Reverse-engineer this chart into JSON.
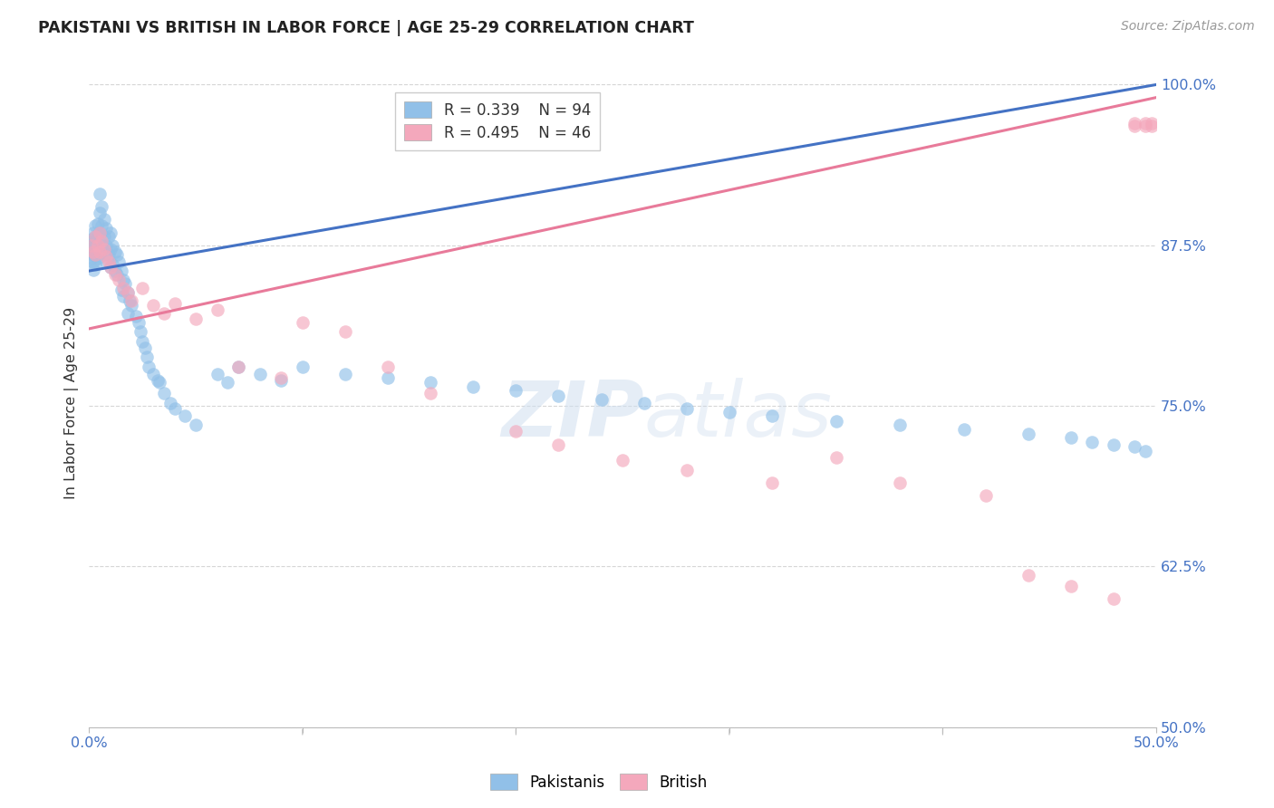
{
  "title": "PAKISTANI VS BRITISH IN LABOR FORCE | AGE 25-29 CORRELATION CHART",
  "source": "Source: ZipAtlas.com",
  "ylabel_label": "In Labor Force | Age 25-29",
  "x_min": 0.0,
  "x_max": 0.5,
  "y_min": 0.5,
  "y_max": 1.005,
  "x_ticks": [
    0.0,
    0.1,
    0.2,
    0.3,
    0.4,
    0.5
  ],
  "x_tick_labels": [
    "0.0%",
    "",
    "",
    "",
    "",
    "50.0%"
  ],
  "y_tick_labels": [
    "100.0%",
    "87.5%",
    "75.0%",
    "62.5%",
    "50.0%"
  ],
  "y_ticks": [
    1.0,
    0.875,
    0.75,
    0.625,
    0.5
  ],
  "pakistani_R": 0.339,
  "pakistani_N": 94,
  "british_R": 0.495,
  "british_N": 46,
  "pakistani_color": "#91c0e8",
  "british_color": "#f4a8bc",
  "pakistani_line_color": "#4472c4",
  "british_line_color": "#e87a9a",
  "background_color": "#ffffff",
  "grid_color": "#cccccc",
  "pakistani_x": [
    0.001,
    0.001,
    0.001,
    0.001,
    0.002,
    0.002,
    0.002,
    0.002,
    0.002,
    0.002,
    0.003,
    0.003,
    0.003,
    0.003,
    0.003,
    0.004,
    0.004,
    0.004,
    0.004,
    0.005,
    0.005,
    0.005,
    0.005,
    0.006,
    0.006,
    0.006,
    0.007,
    0.007,
    0.007,
    0.008,
    0.008,
    0.008,
    0.009,
    0.009,
    0.01,
    0.01,
    0.01,
    0.011,
    0.011,
    0.012,
    0.012,
    0.013,
    0.013,
    0.014,
    0.015,
    0.015,
    0.016,
    0.016,
    0.017,
    0.018,
    0.018,
    0.019,
    0.02,
    0.022,
    0.023,
    0.024,
    0.025,
    0.026,
    0.027,
    0.028,
    0.03,
    0.032,
    0.033,
    0.035,
    0.038,
    0.04,
    0.045,
    0.05,
    0.06,
    0.065,
    0.07,
    0.08,
    0.09,
    0.1,
    0.12,
    0.14,
    0.16,
    0.18,
    0.2,
    0.22,
    0.24,
    0.26,
    0.28,
    0.3,
    0.32,
    0.35,
    0.38,
    0.41,
    0.44,
    0.46,
    0.47,
    0.48,
    0.49,
    0.495
  ],
  "pakistani_y": [
    0.88,
    0.875,
    0.87,
    0.865,
    0.885,
    0.878,
    0.873,
    0.868,
    0.862,
    0.856,
    0.89,
    0.882,
    0.875,
    0.868,
    0.86,
    0.892,
    0.883,
    0.875,
    0.865,
    0.915,
    0.9,
    0.885,
    0.87,
    0.905,
    0.89,
    0.875,
    0.895,
    0.882,
    0.868,
    0.888,
    0.875,
    0.862,
    0.882,
    0.868,
    0.885,
    0.872,
    0.858,
    0.875,
    0.86,
    0.87,
    0.855,
    0.868,
    0.852,
    0.862,
    0.855,
    0.84,
    0.848,
    0.835,
    0.845,
    0.838,
    0.822,
    0.832,
    0.828,
    0.82,
    0.815,
    0.808,
    0.8,
    0.795,
    0.788,
    0.78,
    0.775,
    0.77,
    0.768,
    0.76,
    0.752,
    0.748,
    0.742,
    0.735,
    0.775,
    0.768,
    0.78,
    0.775,
    0.77,
    0.78,
    0.775,
    0.772,
    0.768,
    0.765,
    0.762,
    0.758,
    0.755,
    0.752,
    0.748,
    0.745,
    0.742,
    0.738,
    0.735,
    0.732,
    0.728,
    0.725,
    0.722,
    0.72,
    0.718,
    0.715
  ],
  "british_x": [
    0.001,
    0.002,
    0.003,
    0.003,
    0.004,
    0.005,
    0.005,
    0.006,
    0.007,
    0.008,
    0.009,
    0.01,
    0.012,
    0.014,
    0.016,
    0.018,
    0.02,
    0.025,
    0.03,
    0.035,
    0.04,
    0.05,
    0.06,
    0.07,
    0.09,
    0.1,
    0.12,
    0.14,
    0.16,
    0.2,
    0.22,
    0.25,
    0.28,
    0.32,
    0.35,
    0.38,
    0.42,
    0.44,
    0.46,
    0.48,
    0.49,
    0.49,
    0.495,
    0.495,
    0.498,
    0.498
  ],
  "british_y": [
    0.875,
    0.87,
    0.882,
    0.868,
    0.875,
    0.885,
    0.87,
    0.878,
    0.872,
    0.866,
    0.862,
    0.858,
    0.852,
    0.848,
    0.842,
    0.838,
    0.832,
    0.842,
    0.828,
    0.822,
    0.83,
    0.818,
    0.825,
    0.78,
    0.772,
    0.815,
    0.808,
    0.78,
    0.76,
    0.73,
    0.72,
    0.708,
    0.7,
    0.69,
    0.71,
    0.69,
    0.68,
    0.618,
    0.61,
    0.6,
    0.97,
    0.968,
    0.97,
    0.968,
    0.97,
    0.968
  ]
}
